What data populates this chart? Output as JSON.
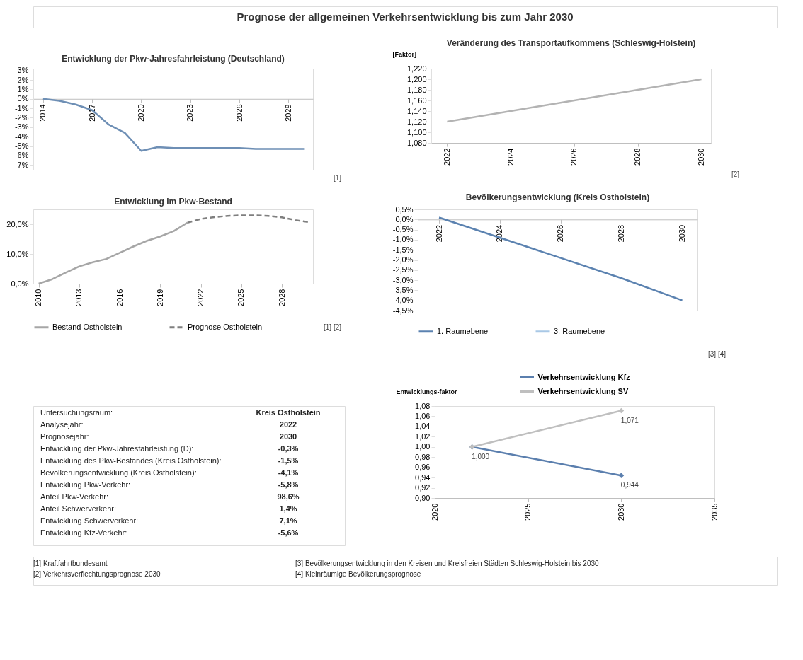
{
  "chart_data": [
    {
      "type": "other",
      "title": "Prognose der allgemeinen Verkehrsentwicklung bis zum Jahr 2030"
    },
    {
      "type": "line",
      "title": "Entwicklung der Pkw-Jahresfahrleistung (Deutschland)",
      "x": [
        2014,
        2015,
        2016,
        2017,
        2018,
        2019,
        2020,
        2021,
        2022,
        2023,
        2024,
        2025,
        2026,
        2027,
        2028,
        2029,
        2030
      ],
      "series": [
        {
          "color": "#6e8fb5",
          "values": [
            0,
            -0.2,
            -0.6,
            -1.2,
            -2.7,
            -3.6,
            -5.5,
            -5.1,
            -5.2,
            -5.2,
            -5.2,
            -5.2,
            -5.2,
            -5.3,
            -5.3,
            -5.3,
            -5.3
          ]
        }
      ],
      "xlim": [
        2013.4,
        2030.5
      ],
      "xticks": [
        2014,
        2017,
        2020,
        2023,
        2026,
        2029
      ],
      "ylim": [
        -7.5,
        3.2
      ],
      "yticks": [
        {
          "value": 3,
          "label": "3%"
        },
        {
          "value": 2,
          "label": "2%"
        },
        {
          "value": 1,
          "label": "1%"
        },
        {
          "value": 0,
          "label": "0%"
        },
        {
          "value": -1,
          "label": "-1%"
        },
        {
          "value": -2,
          "label": "-2%"
        },
        {
          "value": -3,
          "label": "-3%"
        },
        {
          "value": -4,
          "label": "-4%"
        },
        {
          "value": -5,
          "label": "-5%"
        },
        {
          "value": -6,
          "label": "-6%"
        },
        {
          "value": -7,
          "label": "-7%"
        }
      ],
      "annotations": [
        "[1]"
      ]
    },
    {
      "type": "line",
      "title": "Veränderung des Transportaufkommens (Schleswig-Holstein)",
      "ylabel": "[Faktor]",
      "x": [
        2022,
        2023,
        2024,
        2025,
        2026,
        2027,
        2028,
        2029,
        2030
      ],
      "series": [
        {
          "color": "#b3b3b3",
          "values": [
            1.12,
            1.13,
            1.14,
            1.15,
            1.16,
            1.17,
            1.18,
            1.19,
            1.2
          ]
        }
      ],
      "xlim": [
        2021.5,
        2030.3
      ],
      "xticks": [
        2022,
        2024,
        2026,
        2028,
        2030
      ],
      "ylim": [
        1.08,
        1.22
      ],
      "yticks": [
        {
          "value": 1.08,
          "label": "1,080"
        },
        {
          "value": 1.1,
          "label": "1,100"
        },
        {
          "value": 1.12,
          "label": "1,120"
        },
        {
          "value": 1.14,
          "label": "1,140"
        },
        {
          "value": 1.16,
          "label": "1,160"
        },
        {
          "value": 1.18,
          "label": "1,180"
        },
        {
          "value": 1.2,
          "label": "1,200"
        },
        {
          "value": 1.22,
          "label": "1,220"
        }
      ],
      "annotations": [
        "[2]"
      ]
    },
    {
      "type": "line",
      "title": "Entwicklung im Pkw-Bestand",
      "series": [
        {
          "name": "Bestand Ostholstein",
          "color": "#a6a6a6",
          "line_style": "solid",
          "x": [
            2010,
            2011,
            2012,
            2013,
            2014,
            2015,
            2016,
            2017,
            2018,
            2019,
            2020,
            2021
          ],
          "values": [
            0,
            1.5,
            3.7,
            5.8,
            7.2,
            8.3,
            10.4,
            12.5,
            14.4,
            15.9,
            17.7,
            20.5
          ]
        },
        {
          "name": "Prognose Ostholstein",
          "color": "#7f7f7f",
          "line_style": "dashed",
          "x": [
            2021,
            2022,
            2023,
            2024,
            2025,
            2026,
            2027,
            2028,
            2029,
            2030
          ],
          "values": [
            20.5,
            21.8,
            22.4,
            22.8,
            23.0,
            23.0,
            22.8,
            22.3,
            21.4,
            20.7
          ]
        }
      ],
      "xlim": [
        2009.6,
        2030.3
      ],
      "xticks": [
        2010,
        2013,
        2016,
        2019,
        2022,
        2025,
        2028
      ],
      "ylim": [
        0,
        25
      ],
      "yticks": [
        {
          "value": 0,
          "label": "0,0%"
        },
        {
          "value": 10,
          "label": "10,0%"
        },
        {
          "value": 20,
          "label": "20,0%"
        }
      ],
      "legend": "bottom",
      "annotations": [
        "[1] [2]"
      ]
    },
    {
      "type": "line",
      "title": "Bevölkerungsentwicklung (Kreis Ostholstein)",
      "x": [
        2022,
        2024,
        2026,
        2028,
        2030
      ],
      "series": [
        {
          "name": "1. Raumebene",
          "color": "#5b82b0",
          "values": [
            0.1,
            -0.9,
            -1.9,
            -2.9,
            -4.0
          ]
        },
        {
          "name": "3. Raumebene",
          "color": "#a9c8e6",
          "values": [
            null,
            null,
            null,
            null,
            null
          ]
        }
      ],
      "xlim": [
        2021.3,
        2030.5
      ],
      "xticks": [
        2022,
        2024,
        2026,
        2028,
        2030
      ],
      "ylim": [
        -4.5,
        0.5
      ],
      "yticks": [
        {
          "value": 0.5,
          "label": "0,5%"
        },
        {
          "value": 0,
          "label": "0,0%"
        },
        {
          "value": -0.5,
          "label": "-0,5%"
        },
        {
          "value": -1,
          "label": "-1,0%"
        },
        {
          "value": -1.5,
          "label": "-1,5%"
        },
        {
          "value": -2,
          "label": "-2,0%"
        },
        {
          "value": -2.5,
          "label": "-2,5%"
        },
        {
          "value": -3,
          "label": "-3,0%"
        },
        {
          "value": -3.5,
          "label": "-3,5%"
        },
        {
          "value": -4,
          "label": "-4,0%"
        },
        {
          "value": -4.5,
          "label": "-4,5%"
        }
      ],
      "legend": "bottom",
      "annotations": [
        "[3] [4]"
      ]
    },
    {
      "type": "other",
      "annotations": [
        "Untersuchungsraum:",
        "Kreis Ostholstein",
        "Analysejahr:",
        "2022",
        "Prognosejahr:",
        "2030",
        "Entwicklung der Pkw-Jahresfahrleistung (D):",
        "-0,3%",
        "Entwicklung des Pkw-Bestandes (Kreis Ostholstein):",
        "-1,5%",
        "Bevölkerungsentwicklung (Kreis Ostholstein):",
        "-4,1%",
        "Entwicklung Pkw-Verkehr:",
        "-5,8%",
        "Anteil Pkw-Verkehr:",
        "98,6%",
        "Anteil Schwerverkehr:",
        "1,4%",
        "Entwicklung Schwerverkehr:",
        "7,1%",
        "Entwicklung Kfz-Verkehr:",
        "-5,6%"
      ]
    },
    {
      "type": "line",
      "ylabel": "Entwicklungs-faktor",
      "x": [
        2022,
        2030
      ],
      "series": [
        {
          "name": "Verkehrsentwicklung Kfz",
          "color": "#5b7fae",
          "values": [
            1.0,
            0.944
          ],
          "value_labels": [
            "1,000",
            "0,944"
          ]
        },
        {
          "name": "Verkehrsentwicklung SV",
          "color": "#bfbfbf",
          "values": [
            1.0,
            1.071
          ],
          "value_labels": [
            null,
            "1,071"
          ]
        }
      ],
      "xlim": [
        2020,
        2035
      ],
      "xticks": [
        2020,
        2025,
        2030,
        2035
      ],
      "ylim": [
        0.9,
        1.08
      ],
      "yticks": [
        {
          "value": 0.9,
          "label": "0,90"
        },
        {
          "value": 0.92,
          "label": "0,92"
        },
        {
          "value": 0.94,
          "label": "0,94"
        },
        {
          "value": 0.96,
          "label": "0,96"
        },
        {
          "value": 0.98,
          "label": "0,98"
        },
        {
          "value": 1.0,
          "label": "1,00"
        },
        {
          "value": 1.02,
          "label": "1,02"
        },
        {
          "value": 1.04,
          "label": "1,04"
        },
        {
          "value": 1.06,
          "label": "1,06"
        },
        {
          "value": 1.08,
          "label": "1,08"
        }
      ],
      "legend": "top",
      "marker": "diamond"
    },
    {
      "type": "other",
      "annotations": [
        "[1] Kraftfahrtbundesamt",
        "[3] Bevölkerungsentwicklung in den Kreisen und Kreisfreien Städten Schleswig-Holstein bis 2030",
        "[2] Verkehrsverflechtungsprognose 2030",
        "[4] Kleinräumige Bevölkerungsprognose"
      ]
    }
  ]
}
